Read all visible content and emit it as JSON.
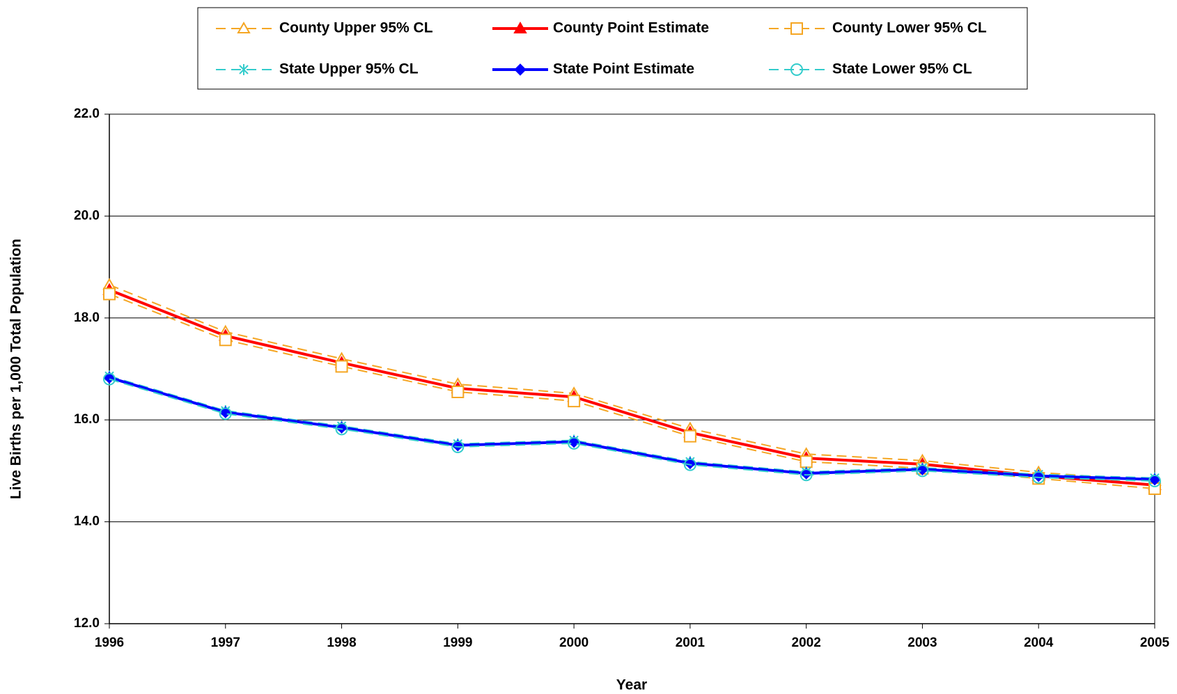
{
  "chart_data": {
    "type": "line",
    "xlabel": "Year",
    "ylabel": "Live Births per 1,000 Total Population",
    "x": [
      1996,
      1997,
      1998,
      1999,
      2000,
      2001,
      2002,
      2003,
      2004,
      2005
    ],
    "xlim": [
      1996,
      2005
    ],
    "xticks": [
      1996,
      1997,
      1998,
      1999,
      2000,
      2001,
      2002,
      2003,
      2004,
      2005
    ],
    "ylim": [
      12,
      22
    ],
    "yticks": [
      {
        "value": 12,
        "label": "12.0"
      },
      {
        "value": 14,
        "label": "14.0"
      },
      {
        "value": 16,
        "label": "16.0"
      },
      {
        "value": 18,
        "label": "18.0"
      },
      {
        "value": 20,
        "label": "20.0"
      },
      {
        "value": 22,
        "label": "22.0"
      }
    ],
    "grid": true,
    "legend": "top",
    "series": [
      {
        "name": "County Upper 95% CL",
        "color": "#f5a623",
        "marker": "triangle-open",
        "dashed": true,
        "values": [
          18.65,
          17.73,
          17.2,
          16.7,
          16.52,
          15.83,
          15.33,
          15.2,
          14.97,
          14.8
        ]
      },
      {
        "name": "County Point Estimate",
        "color": "#ff0000",
        "marker": "triangle",
        "dashed": false,
        "values": [
          18.55,
          17.65,
          17.12,
          16.62,
          16.45,
          15.75,
          15.25,
          15.13,
          14.9,
          14.72
        ]
      },
      {
        "name": "County Lower 95% CL",
        "color": "#f5a623",
        "marker": "square-open",
        "dashed": true,
        "values": [
          18.47,
          17.57,
          17.05,
          16.55,
          16.37,
          15.68,
          15.18,
          15.05,
          14.85,
          14.65
        ]
      },
      {
        "name": "State Upper 95% CL",
        "color": "#33cccc",
        "marker": "asterisk",
        "dashed": true,
        "values": [
          16.86,
          16.18,
          15.88,
          15.53,
          15.6,
          15.18,
          14.98,
          15.06,
          14.93,
          14.86
        ]
      },
      {
        "name": "State Point Estimate",
        "color": "#0000ff",
        "marker": "diamond",
        "dashed": false,
        "values": [
          16.83,
          16.15,
          15.85,
          15.5,
          15.57,
          15.15,
          14.95,
          15.03,
          14.9,
          14.83
        ]
      },
      {
        "name": "State Lower 95% CL",
        "color": "#33cccc",
        "marker": "circle-open",
        "dashed": true,
        "values": [
          16.8,
          16.12,
          15.82,
          15.47,
          15.54,
          15.12,
          14.92,
          15.0,
          14.87,
          14.8
        ]
      }
    ]
  }
}
